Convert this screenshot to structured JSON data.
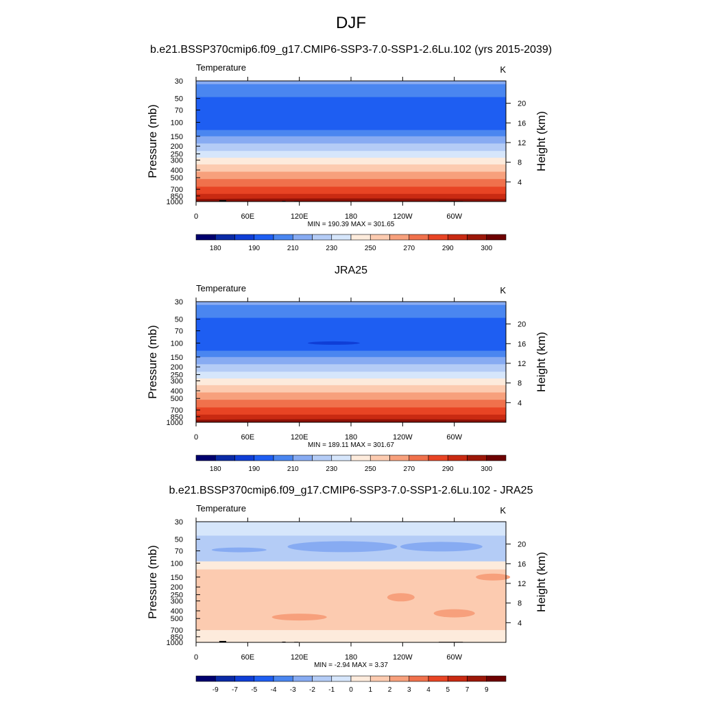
{
  "title": "DJF",
  "colors": {
    "abs_palette": [
      "#00006e",
      "#0a2aa6",
      "#0f3ed6",
      "#1e5ef2",
      "#4a86f0",
      "#87abf2",
      "#b4ccf6",
      "#d6e6fb",
      "#fdebdc",
      "#fccbb0",
      "#f7a07c",
      "#f0714c",
      "#e84424",
      "#c92a12",
      "#9c1708",
      "#6e0202"
    ],
    "diff_palette": [
      "#00006e",
      "#0a2aa6",
      "#0f3ed6",
      "#1e5ef2",
      "#4a86f0",
      "#87abf2",
      "#b4ccf6",
      "#d6e6fb",
      "#fdebdc",
      "#fccbb0",
      "#f7a07c",
      "#f0714c",
      "#e84424",
      "#c92a12",
      "#9c1708",
      "#6e0202"
    ]
  },
  "panels": [
    {
      "title": "b.e21.BSSP370cmip6.f09_g17.CMIP6-SSP3-7.0-SSP1-2.6Lu.102 (yrs 2015-2039)",
      "left_label": "Temperature",
      "right_label": "K",
      "stats": "MIN = 190.39  MAX = 301.65",
      "colorbar_labels": [
        "180",
        "190",
        "210",
        "230",
        "250",
        "270",
        "290",
        "300"
      ]
    },
    {
      "title": "JRA25",
      "left_label": "Temperature",
      "right_label": "K",
      "stats": "MIN = 189.11  MAX = 301.67",
      "colorbar_labels": [
        "180",
        "190",
        "210",
        "230",
        "250",
        "270",
        "290",
        "300"
      ]
    },
    {
      "title": "b.e21.BSSP370cmip6.f09_g17.CMIP6-SSP3-7.0-SSP1-2.6Lu.102 - JRA25",
      "left_label": "Temperature",
      "right_label": "K",
      "stats": "MIN =  -2.94  MAX =   3.37",
      "colorbar_labels": [
        "-9",
        "-7",
        "-5",
        "-4",
        "-3",
        "-2",
        "-1",
        "0",
        "1",
        "2",
        "3",
        "4",
        "5",
        "7",
        "9"
      ]
    }
  ],
  "axes": {
    "ylabel": "Pressure (mb)",
    "y2label": "Height (km)",
    "pressure_ticks": [
      "30",
      "50",
      "70",
      "100",
      "150",
      "200",
      "250",
      "300",
      "400",
      "500",
      "700",
      "850",
      "1000"
    ],
    "height_ticks": [
      "20",
      "16",
      "12",
      "8",
      "4"
    ],
    "lon_ticks": [
      "0",
      "60E",
      "120E",
      "180",
      "120W",
      "60W"
    ]
  },
  "chart_data": [
    {
      "type": "heatmap",
      "title": "b.e21.BSSP370cmip6.f09_g17.CMIP6-SSP3-7.0-SSP1-2.6Lu.102 (yrs 2015-2039)",
      "variable": "Temperature",
      "units": "K",
      "x_range_deg": [
        0,
        360
      ],
      "y_range_mb": [
        30,
        1000
      ],
      "min": 190.39,
      "max": 301.65,
      "levels": [
        180,
        185,
        190,
        200,
        210,
        220,
        230,
        240,
        250,
        260,
        270,
        280,
        290,
        295,
        300
      ]
    },
    {
      "type": "heatmap",
      "title": "JRA25",
      "variable": "Temperature",
      "units": "K",
      "x_range_deg": [
        0,
        360
      ],
      "y_range_mb": [
        30,
        1000
      ],
      "min": 189.11,
      "max": 301.67,
      "levels": [
        180,
        185,
        190,
        200,
        210,
        220,
        230,
        240,
        250,
        260,
        270,
        280,
        290,
        295,
        300
      ]
    },
    {
      "type": "heatmap",
      "title": "b.e21.BSSP370cmip6.f09_g17.CMIP6-SSP3-7.0-SSP1-2.6Lu.102 - JRA25",
      "variable": "Temperature",
      "units": "K",
      "x_range_deg": [
        0,
        360
      ],
      "y_range_mb": [
        30,
        1000
      ],
      "min": -2.94,
      "max": 3.37,
      "levels": [
        -9,
        -7,
        -5,
        -4,
        -3,
        -2,
        -1,
        0,
        1,
        2,
        3,
        4,
        5,
        7,
        9
      ]
    }
  ]
}
